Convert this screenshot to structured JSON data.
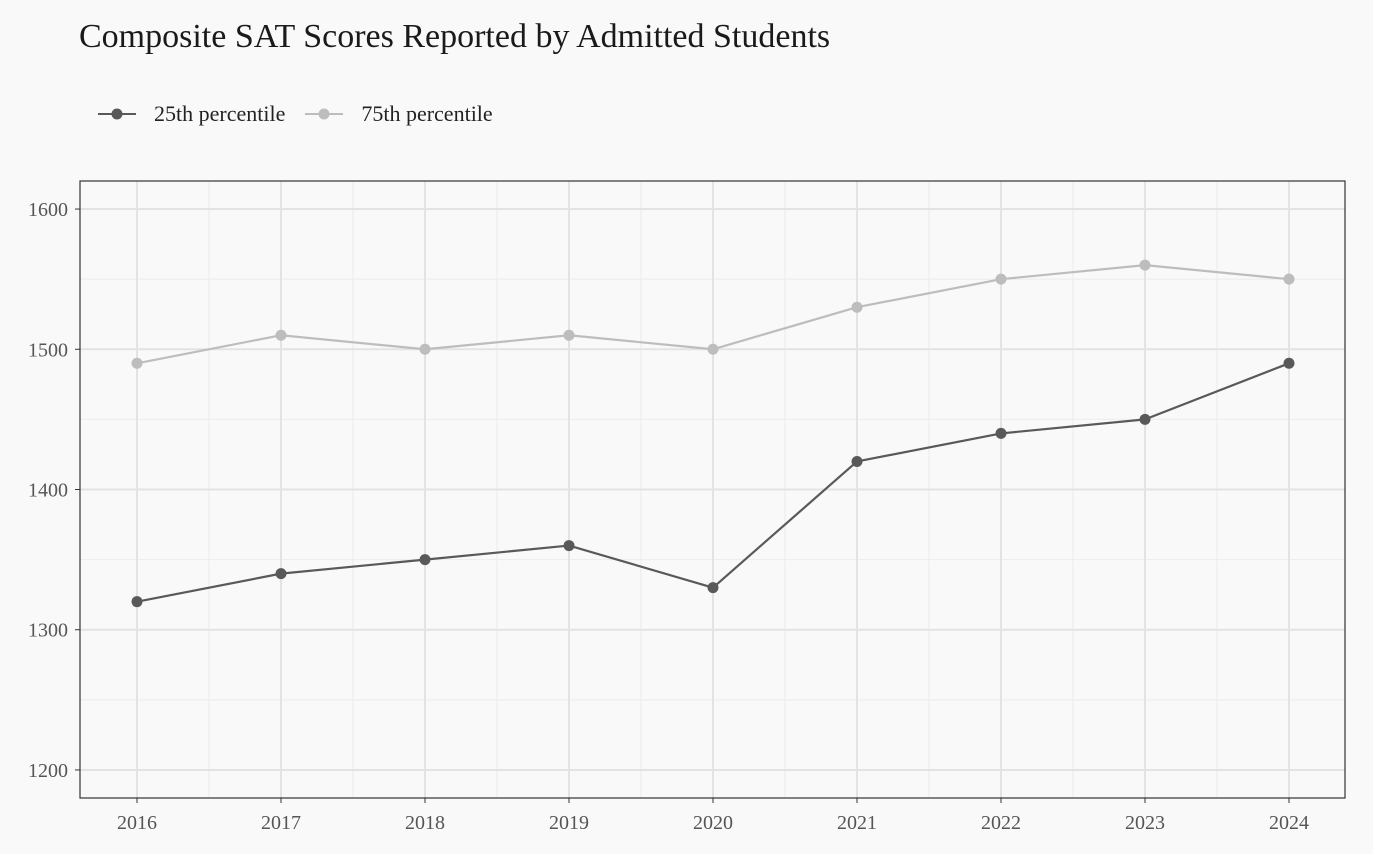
{
  "chart_data": {
    "type": "line",
    "title": "Composite SAT Scores Reported by Admitted Students",
    "xlabel": "",
    "ylabel": "",
    "x": [
      "2016",
      "2017",
      "2018",
      "2019",
      "2020",
      "2021",
      "2022",
      "2023",
      "2024"
    ],
    "ylim": [
      1180,
      1620
    ],
    "yticks": [
      1200,
      1300,
      1400,
      1500,
      1600
    ],
    "grid": true,
    "legend_position": "top-left",
    "series": [
      {
        "name": "25th percentile",
        "color": "#595959",
        "values": [
          1320,
          1340,
          1350,
          1360,
          1330,
          1420,
          1440,
          1450,
          1490
        ]
      },
      {
        "name": "75th percentile",
        "color": "#bdbdbd",
        "values": [
          1490,
          1510,
          1500,
          1510,
          1500,
          1530,
          1550,
          1560,
          1550
        ]
      }
    ]
  }
}
